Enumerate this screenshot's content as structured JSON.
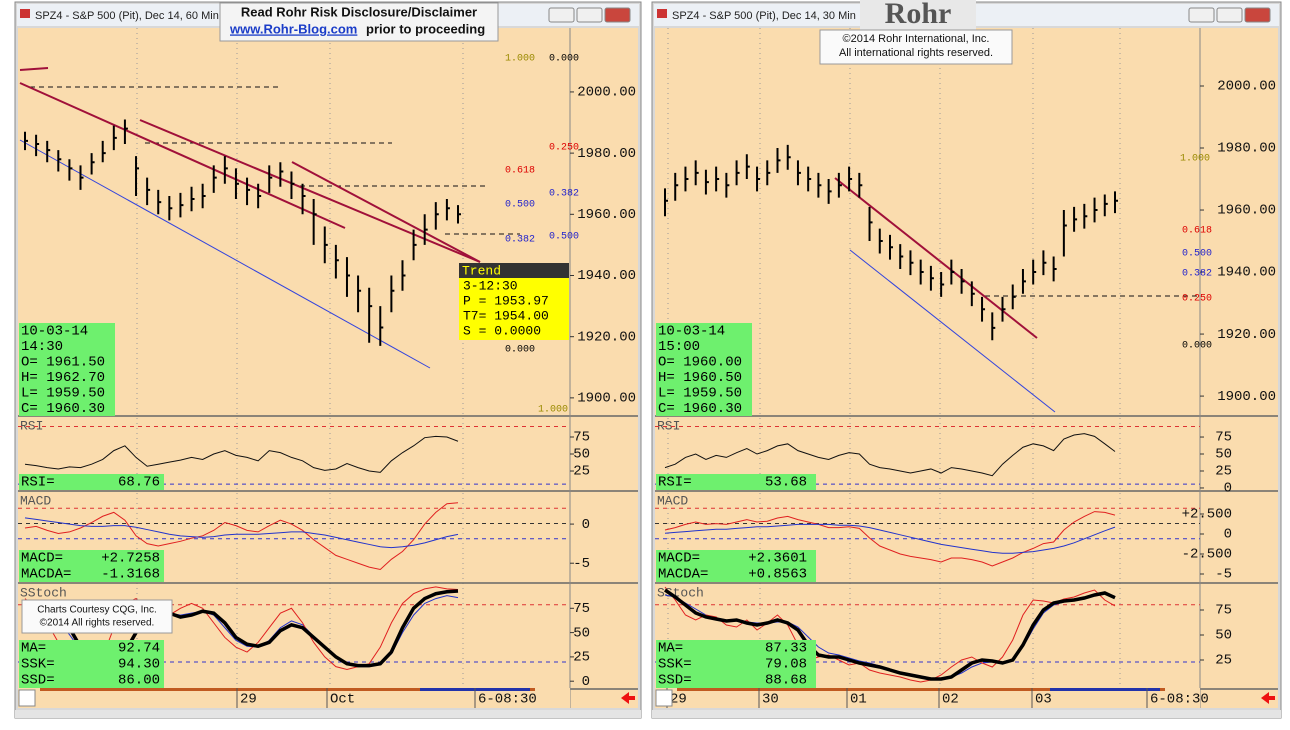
{
  "windows": [
    {
      "title": "SPZ4 - S&P 500 (Pit), Dec 14, 60 Min",
      "price": {
        "ylim": [
          1894.4,
          2020.9
        ],
        "yticks": [
          {
            "value": 2000,
            "label": "2000.00"
          },
          {
            "value": 1980,
            "label": "1980.00"
          },
          {
            "value": 1960,
            "label": "1960.00"
          },
          {
            "value": 1940,
            "label": "1940.00"
          },
          {
            "value": 1920,
            "label": "1920.00"
          },
          {
            "value": 1900,
            "label": "1900.00"
          }
        ],
        "high": [
          1987,
          1986,
          1984,
          1981,
          1978,
          1976,
          1980,
          1984,
          1989,
          1991,
          1979,
          1972,
          1968,
          1966,
          1967,
          1969,
          1970,
          1976,
          1979,
          1975,
          1972,
          1970,
          1976,
          1977,
          1974,
          1970,
          1965,
          1956,
          1950,
          1946,
          1940,
          1936,
          1930,
          1940,
          1945,
          1955,
          1960,
          1964,
          1965,
          1963
        ],
        "low": [
          1981,
          1979,
          1977,
          1974,
          1971,
          1968,
          1973,
          1977,
          1981,
          1983,
          1966,
          1963,
          1960,
          1958,
          1959,
          1961,
          1962,
          1967,
          1970,
          1965,
          1963,
          1962,
          1967,
          1969,
          1965,
          1960,
          1950,
          1944,
          1939,
          1933,
          1928,
          1918,
          1917,
          1928,
          1935,
          1945,
          1950,
          1955,
          1958,
          1957
        ],
        "close": [
          1984,
          1983,
          1981,
          1978,
          1975,
          1972,
          1977,
          1980,
          1985,
          1988,
          1975,
          1968,
          1964,
          1962,
          1963,
          1965,
          1966,
          1972,
          1975,
          1970,
          1968,
          1966,
          1972,
          1974,
          1970,
          1966,
          1960,
          1950,
          1945,
          1940,
          1935,
          1930,
          1923,
          1935,
          1940,
          1950,
          1955,
          1960,
          1962,
          1960
        ],
        "fib": [
          "1.000",
          "0.000",
          "0.250",
          "0.618",
          "0.382",
          "0.500",
          "0.382",
          "0.500",
          "0.000",
          "1.000"
        ]
      },
      "info": [
        "10-03-14",
        "14:30",
        "O= 1961.50",
        "H= 1962.70",
        "L= 1959.50",
        "C= 1960.30"
      ],
      "trend": {
        "title": "Trend",
        "lines": [
          "3-12:30",
          "P = 1953.97",
          "T7= 1954.00",
          "S =   0.0000"
        ]
      },
      "rsi": {
        "label": "RSI",
        "ylim": [
          -2.9,
          104.4
        ],
        "yticks": [
          75,
          50,
          25
        ],
        "values": [
          35,
          33,
          30,
          28,
          31,
          30,
          35,
          42,
          55,
          62,
          45,
          32,
          35,
          38,
          41,
          45,
          42,
          50,
          55,
          48,
          45,
          40,
          55,
          52,
          45,
          40,
          30,
          26,
          28,
          36,
          30,
          25,
          23,
          40,
          52,
          62,
          74,
          76,
          75,
          68.76
        ],
        "readout": [
          [
            "RSI=",
            "68.76"
          ]
        ]
      },
      "macd": {
        "label": "MACD",
        "ylim": [
          -7.4,
          4.1
        ],
        "yticks": [
          0,
          -5
        ],
        "macd": [
          -0.5,
          -0.3,
          -0.8,
          -1.2,
          -1.0,
          -0.5,
          0.2,
          1.0,
          1.5,
          0.5,
          -1.5,
          -2.5,
          -2.8,
          -2.5,
          -2.2,
          -1.8,
          -1.5,
          -0.8,
          0.2,
          -0.2,
          -0.8,
          -1.0,
          -0.2,
          0.5,
          0,
          -0.8,
          -2.0,
          -3.0,
          -4.0,
          -4.5,
          -5.0,
          -5.5,
          -5.8,
          -4.5,
          -3.5,
          -2.0,
          0,
          1.5,
          2.6,
          2.7258
        ],
        "macda": [
          0.8,
          0.6,
          0.4,
          0.2,
          0,
          -0.2,
          -0.3,
          -0.3,
          -0.2,
          -0.2,
          -0.4,
          -0.7,
          -1.0,
          -1.3,
          -1.5,
          -1.6,
          -1.7,
          -1.6,
          -1.4,
          -1.3,
          -1.3,
          -1.3,
          -1.2,
          -1.1,
          -1.0,
          -1.0,
          -1.2,
          -1.4,
          -1.7,
          -2.0,
          -2.3,
          -2.6,
          -2.9,
          -3.0,
          -2.9,
          -2.7,
          -2.4,
          -2.0,
          -1.6,
          -1.3168
        ],
        "readout": [
          [
            "MACD=",
            "+2.7258"
          ],
          [
            "MACDA=",
            "-1.3168"
          ]
        ]
      },
      "stoch": {
        "label": "SStoch",
        "ylim": [
          -7,
          100
        ],
        "yticks": [
          75,
          50,
          25,
          0
        ],
        "ma": [
          80,
          82,
          78,
          70,
          55,
          35,
          20,
          12,
          15,
          30,
          50,
          68,
          72,
          70,
          66,
          68,
          72,
          70,
          60,
          45,
          38,
          36,
          40,
          52,
          58,
          55,
          45,
          35,
          25,
          18,
          16,
          16,
          18,
          30,
          55,
          75,
          85,
          90,
          92,
          92.74
        ],
        "ssk": [
          85,
          75,
          60,
          40,
          20,
          10,
          12,
          25,
          55,
          80,
          85,
          75,
          65,
          68,
          75,
          80,
          75,
          60,
          45,
          35,
          30,
          40,
          55,
          70,
          75,
          60,
          40,
          25,
          15,
          12,
          15,
          18,
          35,
          60,
          80,
          90,
          95,
          97,
          95,
          94.3
        ],
        "ssd": [
          70,
          72,
          70,
          62,
          48,
          32,
          20,
          15,
          18,
          32,
          52,
          65,
          70,
          70,
          68,
          70,
          72,
          68,
          55,
          42,
          36,
          35,
          42,
          55,
          62,
          58,
          46,
          34,
          24,
          18,
          15,
          15,
          18,
          28,
          50,
          68,
          80,
          85,
          88,
          86
        ],
        "readout": [
          [
            "MA=",
            "92.74"
          ],
          [
            "SSK=",
            "94.30"
          ],
          [
            "SSD=",
            "86.00"
          ]
        ]
      },
      "dates": [
        "29",
        "Oct",
        "6-08:30"
      ]
    },
    {
      "title": "SPZ4 - S&P 500 (Pit), Dec 14, 30 Min",
      "price": {
        "ylim": [
          1893.9,
          2018.7
        ],
        "yticks": [
          {
            "value": 2000,
            "label": "2000.00"
          },
          {
            "value": 1980,
            "label": "1980.00"
          },
          {
            "value": 1960,
            "label": "1960.00"
          },
          {
            "value": 1940,
            "label": "1940.00"
          },
          {
            "value": 1920,
            "label": "1920.00"
          },
          {
            "value": 1900,
            "label": "1900.00"
          }
        ],
        "high": [
          1967,
          1972,
          1974,
          1976,
          1973,
          1974,
          1972,
          1976,
          1978,
          1974,
          1976,
          1980,
          1981,
          1976,
          1974,
          1972,
          1970,
          1972,
          1974,
          1972,
          1961,
          1954,
          1952,
          1949,
          1947,
          1944,
          1942,
          1940,
          1944,
          1941,
          1937,
          1932,
          1927,
          1932,
          1936,
          1941,
          1944,
          1947,
          1945,
          1960,
          1961,
          1962,
          1964,
          1965,
          1966
        ],
        "low": [
          1958,
          1963,
          1966,
          1968,
          1965,
          1966,
          1964,
          1968,
          1970,
          1966,
          1968,
          1972,
          1973,
          1968,
          1966,
          1964,
          1962,
          1964,
          1966,
          1964,
          1950,
          1946,
          1944,
          1941,
          1939,
          1936,
          1934,
          1932,
          1936,
          1933,
          1929,
          1924,
          1918,
          1924,
          1928,
          1933,
          1936,
          1939,
          1937,
          1945,
          1953,
          1954,
          1956,
          1958,
          1959
        ],
        "close": [
          1963,
          1968,
          1970,
          1972,
          1969,
          1970,
          1968,
          1972,
          1974,
          1970,
          1972,
          1976,
          1977,
          1972,
          1970,
          1968,
          1966,
          1968,
          1970,
          1968,
          1956,
          1950,
          1948,
          1945,
          1943,
          1940,
          1938,
          1936,
          1940,
          1937,
          1933,
          1928,
          1922,
          1928,
          1932,
          1937,
          1940,
          1943,
          1941,
          1955,
          1957,
          1958,
          1960,
          1962,
          1963
        ],
        "fib": [
          "1.000",
          "0.618",
          "0.500",
          "0.382",
          "0.250",
          "0.000"
        ]
      },
      "info": [
        "10-03-14",
        "15:00",
        "O= 1960.00",
        "H= 1960.50",
        "L= 1959.50",
        "C= 1960.30"
      ],
      "rsi": {
        "label": "RSI",
        "ylim": [
          -3,
          104.5
        ],
        "yticks": [
          75,
          50,
          25,
          0
        ],
        "values": [
          30,
          35,
          45,
          50,
          42,
          48,
          45,
          52,
          58,
          50,
          55,
          62,
          65,
          55,
          50,
          45,
          42,
          48,
          52,
          50,
          35,
          30,
          28,
          25,
          22,
          25,
          28,
          22,
          30,
          28,
          25,
          22,
          18,
          35,
          48,
          60,
          65,
          62,
          55,
          72,
          78,
          80,
          76,
          65,
          53.68
        ],
        "readout": [
          [
            "RSI=",
            "53.68"
          ]
        ]
      },
      "macd": {
        "label": "MACD",
        "ylim": [
          -6,
          5.25
        ],
        "yticks": [
          {
            "value": 2.5,
            "label": "+2.500"
          },
          0,
          {
            "value": -2.5,
            "label": "-2.500"
          },
          -5
        ],
        "macd": [
          0.5,
          0.8,
          1.2,
          1.5,
          1.2,
          1.3,
          1.2,
          1.5,
          1.8,
          1.5,
          1.6,
          2.0,
          2.2,
          1.8,
          1.5,
          1.2,
          0.8,
          0.8,
          0.9,
          0.7,
          -0.5,
          -1.5,
          -2.0,
          -2.5,
          -2.8,
          -3.0,
          -3.2,
          -3.5,
          -3.0,
          -3.0,
          -3.2,
          -3.5,
          -4.0,
          -3.5,
          -3.0,
          -2.3,
          -1.8,
          -1.2,
          -1.0,
          0.5,
          1.5,
          2.2,
          2.8,
          2.7,
          2.3601
        ],
        "macda": [
          0.1,
          0.2,
          0.3,
          0.4,
          0.5,
          0.6,
          0.6,
          0.7,
          0.8,
          0.9,
          0.9,
          1.0,
          1.1,
          1.2,
          1.2,
          1.2,
          1.2,
          1.1,
          1.1,
          1.0,
          0.8,
          0.5,
          0.2,
          -0.1,
          -0.4,
          -0.7,
          -1.0,
          -1.3,
          -1.5,
          -1.7,
          -1.9,
          -2.1,
          -2.3,
          -2.4,
          -2.4,
          -2.3,
          -2.2,
          -2.0,
          -1.8,
          -1.5,
          -1.1,
          -0.6,
          -0.1,
          0.4,
          0.8563
        ],
        "readout": [
          [
            "MACD=",
            "+2.3601"
          ],
          [
            "MACDA=",
            "+0.8563"
          ]
        ]
      },
      "stoch": {
        "label": "SStoch",
        "ylim": [
          -3,
          101
        ],
        "yticks": [
          75,
          50,
          25
        ],
        "ma": [
          95,
          88,
          80,
          72,
          68,
          66,
          64,
          65,
          62,
          60,
          62,
          65,
          62,
          55,
          40,
          30,
          28,
          28,
          25,
          22,
          20,
          18,
          15,
          12,
          10,
          8,
          6,
          6,
          8,
          15,
          22,
          25,
          24,
          22,
          25,
          40,
          60,
          75,
          82,
          84,
          85,
          87,
          90,
          92,
          87.33
        ],
        "ssk": [
          98,
          85,
          70,
          65,
          70,
          68,
          60,
          58,
          65,
          55,
          62,
          70,
          60,
          40,
          25,
          28,
          30,
          25,
          20,
          22,
          15,
          12,
          10,
          8,
          5,
          3,
          5,
          10,
          18,
          25,
          28,
          22,
          18,
          28,
          45,
          70,
          85,
          84,
          82,
          86,
          88,
          92,
          95,
          85,
          79.08
        ],
        "ssd": [
          90,
          88,
          82,
          76,
          70,
          67,
          65,
          64,
          63,
          62,
          62,
          63,
          63,
          58,
          48,
          38,
          32,
          30,
          27,
          24,
          22,
          19,
          16,
          13,
          11,
          9,
          7,
          6,
          8,
          12,
          18,
          22,
          23,
          23,
          26,
          38,
          56,
          72,
          80,
          83,
          85,
          87,
          90,
          92,
          88.68
        ],
        "readout": [
          [
            "MA=",
            "87.33"
          ],
          [
            "SSK=",
            "79.08"
          ],
          [
            "SSD=",
            "88.68"
          ]
        ]
      },
      "dates": [
        "29",
        "30",
        "01",
        "02",
        "03",
        "6-08:30"
      ]
    }
  ],
  "disclaimer": {
    "line1": "Read Rohr Risk Disclosure/Disclaimer",
    "link": "www.Rohr-Blog.com",
    "line2": "prior to proceeding"
  },
  "logo": "Rohr",
  "copyright": [
    "©2014  Rohr International, Inc.",
    "All international rights reserved."
  ],
  "courtesy": [
    "Charts Courtesy CQG, Inc.",
    "©2014 All rights reserved."
  ]
}
